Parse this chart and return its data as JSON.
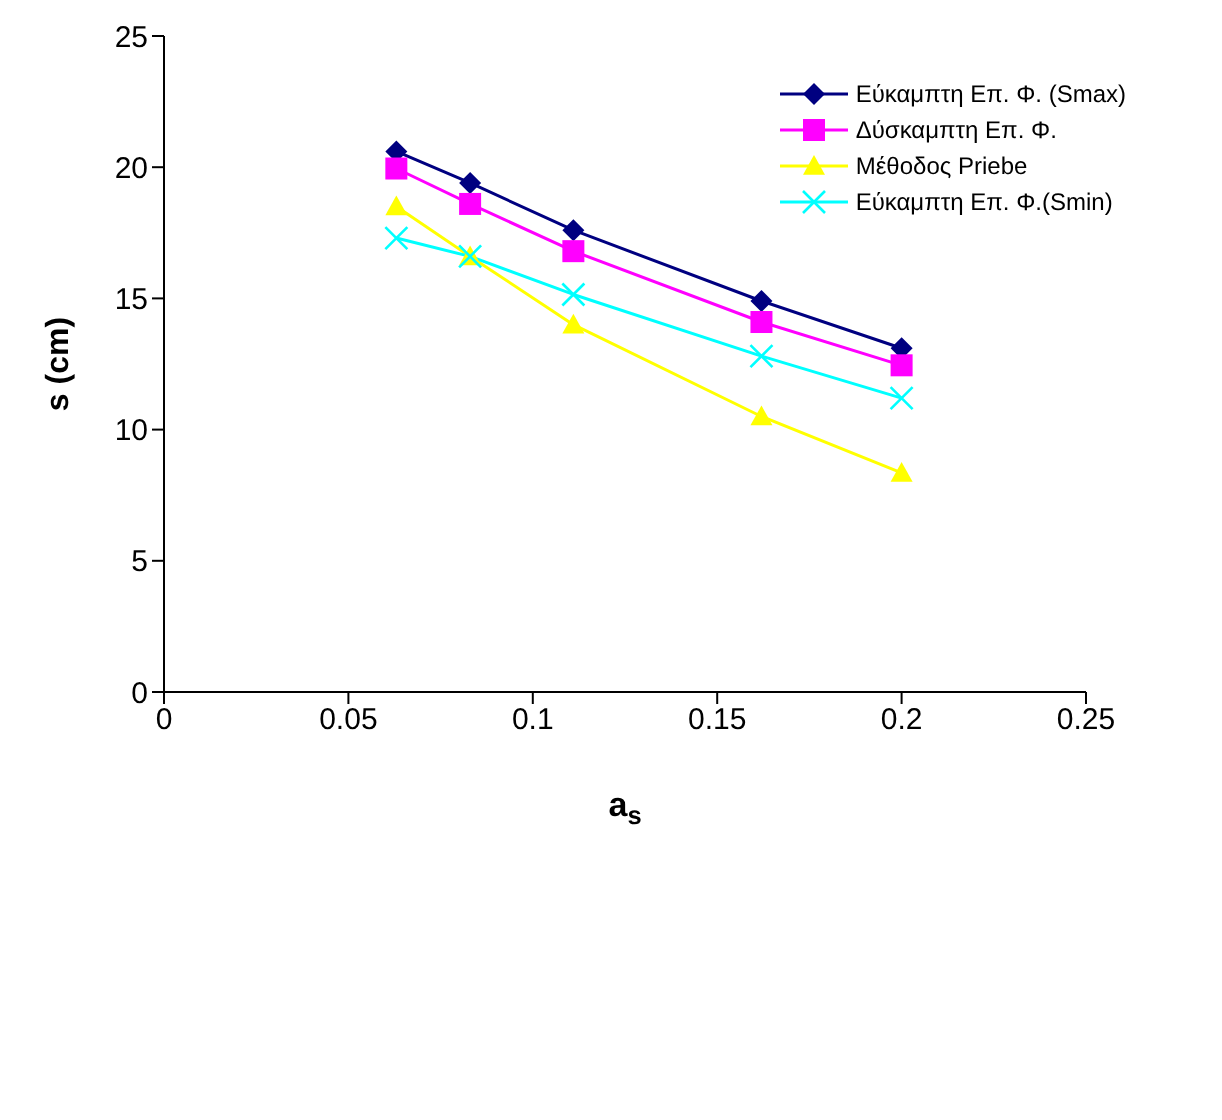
{
  "chart_data": {
    "type": "line",
    "xlabel": "a$_{s}$",
    "ylabel": "s (cm)",
    "x": [
      0.063,
      0.083,
      0.111,
      0.162,
      0.2
    ],
    "xlim": [
      0,
      0.25
    ],
    "xticks": [
      0,
      0.05,
      0.1,
      0.15,
      0.2,
      0.25
    ],
    "ylim": [
      0,
      25
    ],
    "yticks": [
      0,
      5,
      10,
      15,
      20,
      25
    ],
    "grid": false,
    "legend": "top right",
    "series": [
      {
        "name": "Εύκαμπτη Επ. Φ. (Smax)",
        "color": "#000080",
        "marker": "diamond",
        "values": [
          20.6,
          19.4,
          17.6,
          14.9,
          13.1
        ]
      },
      {
        "name": "Δύσκαμπτη Επ. Φ.",
        "color": "#ff00ff",
        "marker": "square",
        "values": [
          19.95,
          18.6,
          16.8,
          14.1,
          12.45
        ]
      },
      {
        "name": "Μέθοδος Priebe",
        "color": "#ffff00",
        "marker": "triangle",
        "values": [
          18.5,
          16.6,
          14.0,
          10.5,
          8.35
        ]
      },
      {
        "name": "Εύκαμπτη Επ. Φ.(Smin)",
        "color": "#00ffff",
        "marker": "cross",
        "values": [
          17.3,
          16.6,
          15.15,
          12.8,
          11.2
        ]
      }
    ]
  }
}
